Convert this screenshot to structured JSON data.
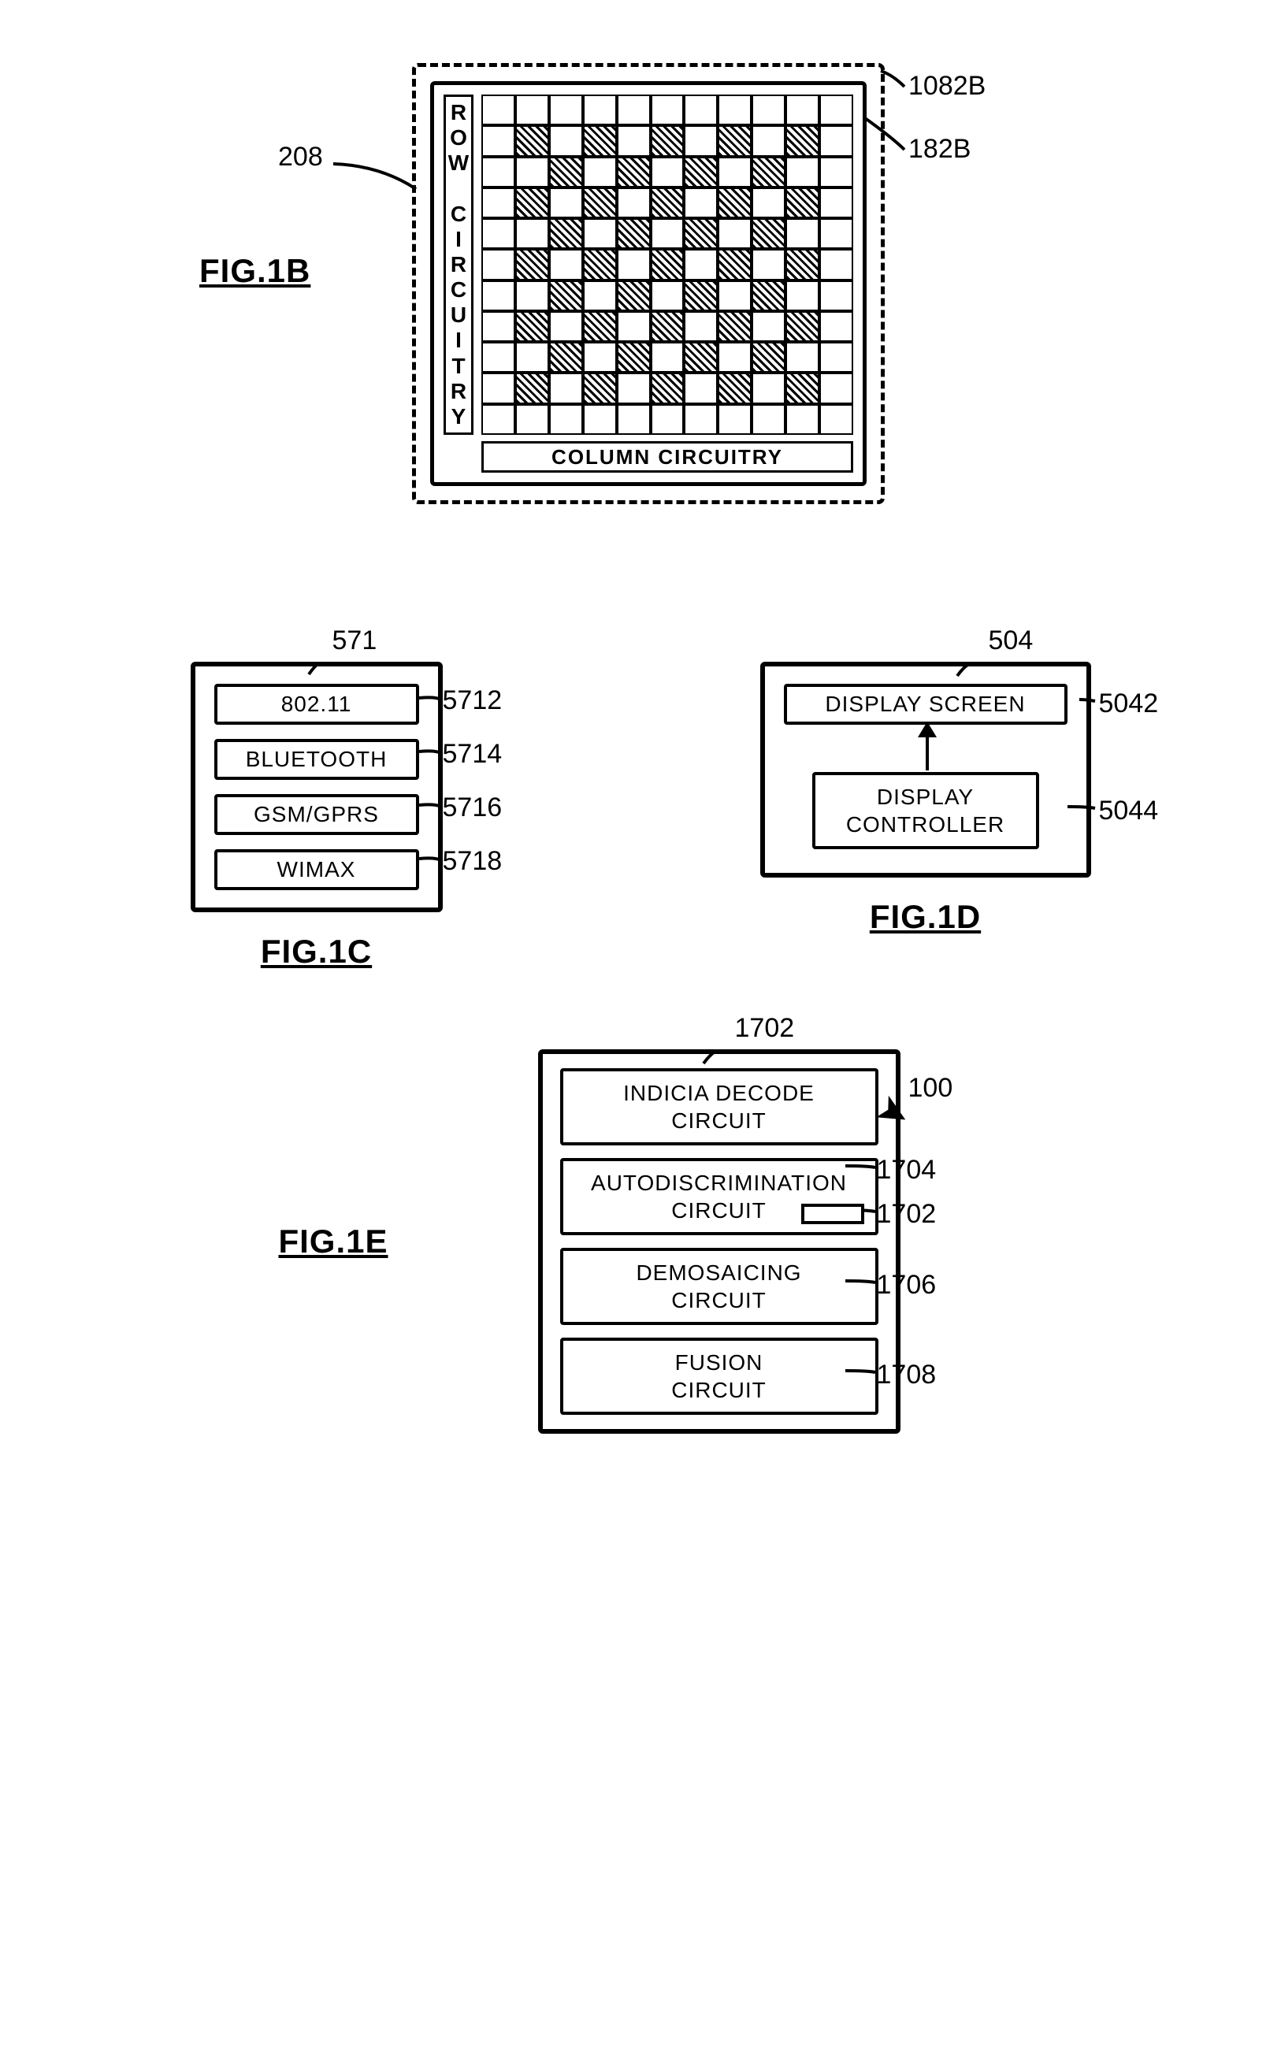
{
  "fig1b": {
    "title": "FIG.1B",
    "row_label": "ROW CIRCUITRY",
    "col_label": "COLUMN CIRCUITRY",
    "callout_208": "208",
    "callout_1082B": "1082B",
    "callout_182B": "182B",
    "grid": {
      "cols": 11,
      "rows": 11,
      "hatched": [
        [
          1,
          1
        ],
        [
          1,
          3
        ],
        [
          1,
          5
        ],
        [
          1,
          7
        ],
        [
          1,
          9
        ],
        [
          2,
          2
        ],
        [
          2,
          4
        ],
        [
          2,
          6
        ],
        [
          2,
          8
        ],
        [
          3,
          1
        ],
        [
          3,
          3
        ],
        [
          3,
          5
        ],
        [
          3,
          7
        ],
        [
          3,
          9
        ],
        [
          4,
          2
        ],
        [
          4,
          4
        ],
        [
          4,
          6
        ],
        [
          4,
          8
        ],
        [
          5,
          1
        ],
        [
          5,
          3
        ],
        [
          5,
          5
        ],
        [
          5,
          7
        ],
        [
          5,
          9
        ],
        [
          6,
          2
        ],
        [
          6,
          4
        ],
        [
          6,
          6
        ],
        [
          6,
          8
        ],
        [
          7,
          1
        ],
        [
          7,
          3
        ],
        [
          7,
          5
        ],
        [
          7,
          7
        ],
        [
          7,
          9
        ],
        [
          8,
          2
        ],
        [
          8,
          4
        ],
        [
          8,
          6
        ],
        [
          8,
          8
        ],
        [
          9,
          1
        ],
        [
          9,
          3
        ],
        [
          9,
          5
        ],
        [
          9,
          7
        ],
        [
          9,
          9
        ]
      ]
    }
  },
  "fig1c": {
    "title": "FIG.1C",
    "box_ref": "571",
    "items": [
      {
        "label": "802.11",
        "ref": "5712"
      },
      {
        "label": "BLUETOOTH",
        "ref": "5714"
      },
      {
        "label": "GSM/GPRS",
        "ref": "5716"
      },
      {
        "label": "WIMAX",
        "ref": "5718"
      }
    ]
  },
  "fig1d": {
    "title": "FIG.1D",
    "box_ref": "504",
    "display_screen": "DISPLAY SCREEN",
    "display_controller": "DISPLAY\nCONTROLLER",
    "ref_screen": "5042",
    "ref_controller": "5044"
  },
  "fig1e": {
    "title": "FIG.1E",
    "box_ref": "1702",
    "device_ref": "100",
    "circuits": [
      {
        "label": "INDICIA DECODE\nCIRCUIT",
        "ref": "1702",
        "inset": false
      },
      {
        "label": "AUTODISCRIMINATION\nCIRCUIT",
        "ref": "1704",
        "inset": true,
        "inset_ref": "1702"
      },
      {
        "label": "DEMOSAICING\nCIRCUIT",
        "ref": "1706",
        "inset": false
      },
      {
        "label": "FUSION\nCIRCUIT",
        "ref": "1708",
        "inset": false
      }
    ]
  },
  "style": {
    "stroke": "#000000",
    "bg": "#ffffff",
    "font_main": 28,
    "font_title": 42,
    "font_callout": 34
  }
}
